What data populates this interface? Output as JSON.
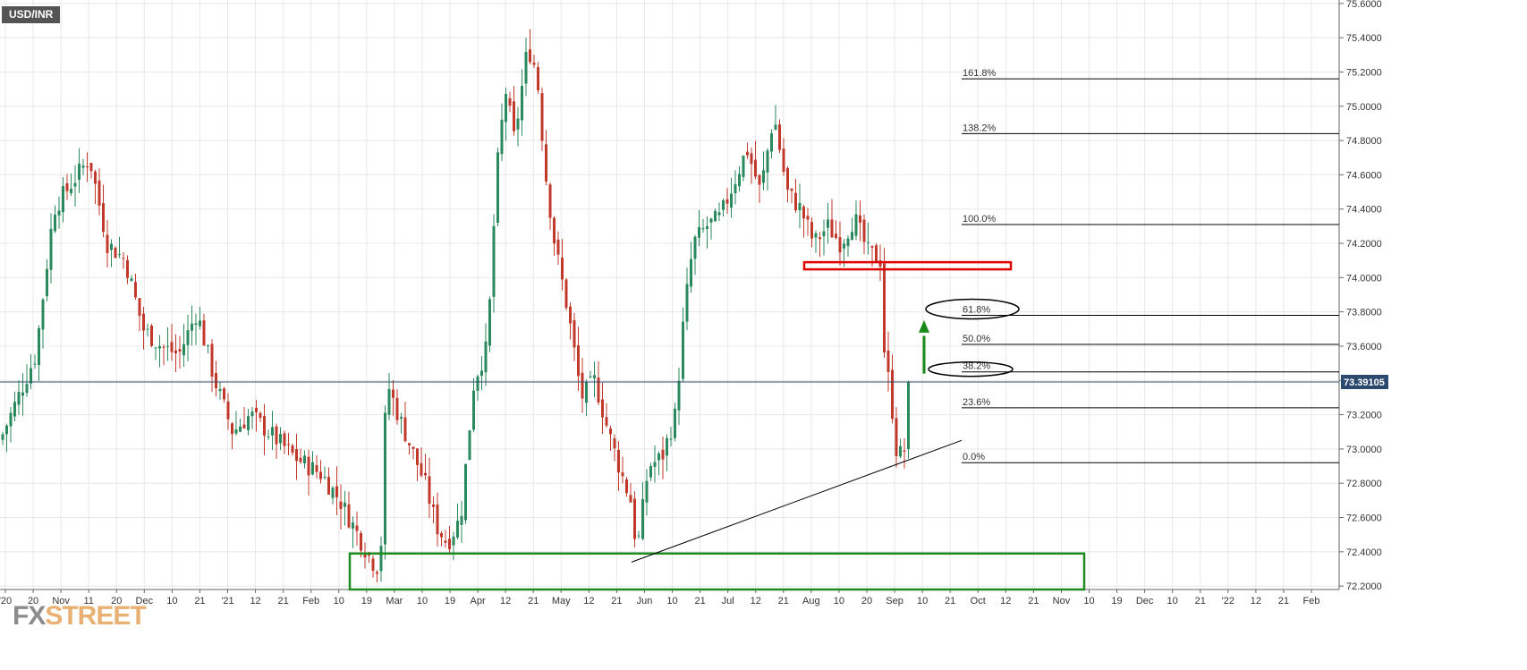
{
  "chart_data": {
    "type": "candlestick",
    "symbol": "USD/INR",
    "last_price": "73.39105",
    "ylim": [
      72.18,
      75.62
    ],
    "y_ticks": [
      "75.6000",
      "75.4000",
      "75.2000",
      "75.0000",
      "74.8000",
      "74.6000",
      "74.4000",
      "74.2000",
      "74.0000",
      "73.8000",
      "73.6000",
      "73.4000",
      "73.2000",
      "73.0000",
      "72.8000",
      "72.6000",
      "72.4000",
      "72.2000"
    ],
    "x_ticks": [
      "'20",
      "20",
      "Nov",
      "11",
      "20",
      "Dec",
      "10",
      "21",
      "'21",
      "12",
      "21",
      "Feb",
      "10",
      "19",
      "Mar",
      "10",
      "19",
      "Apr",
      "12",
      "21",
      "May",
      "12",
      "21",
      "Jun",
      "10",
      "21",
      "Jul",
      "12",
      "21",
      "Aug",
      "10",
      "20",
      "Sep",
      "10",
      "21",
      "Oct",
      "12",
      "21",
      "Nov",
      "10",
      "19",
      "Dec",
      "10",
      "21",
      "'22",
      "12",
      "21",
      "Feb"
    ],
    "fibonacci": [
      {
        "label": "161.8%",
        "value": 75.16
      },
      {
        "label": "138.2%",
        "value": 74.84
      },
      {
        "label": "100.0%",
        "value": 74.31
      },
      {
        "label": "61.8%",
        "value": 73.78
      },
      {
        "label": "50.0%",
        "value": 73.61
      },
      {
        "label": "38.2%",
        "value": 73.45
      },
      {
        "label": "23.6%",
        "value": 73.24
      },
      {
        "label": "0.0%",
        "value": 72.92
      }
    ],
    "annotations": {
      "resistance_zone": {
        "from": 74.05,
        "to": 74.09
      },
      "support_zone": {
        "from": 72.18,
        "to": 72.39
      },
      "trendline": {
        "start": 72.34,
        "end": 73.05
      }
    },
    "colors": {
      "up": "#2a8a5e",
      "down": "#c0392b",
      "grid": "#e8e8e8",
      "price_line": "#2c4a6e"
    }
  },
  "branding": {
    "fx": "FX",
    "street": "STREET"
  }
}
